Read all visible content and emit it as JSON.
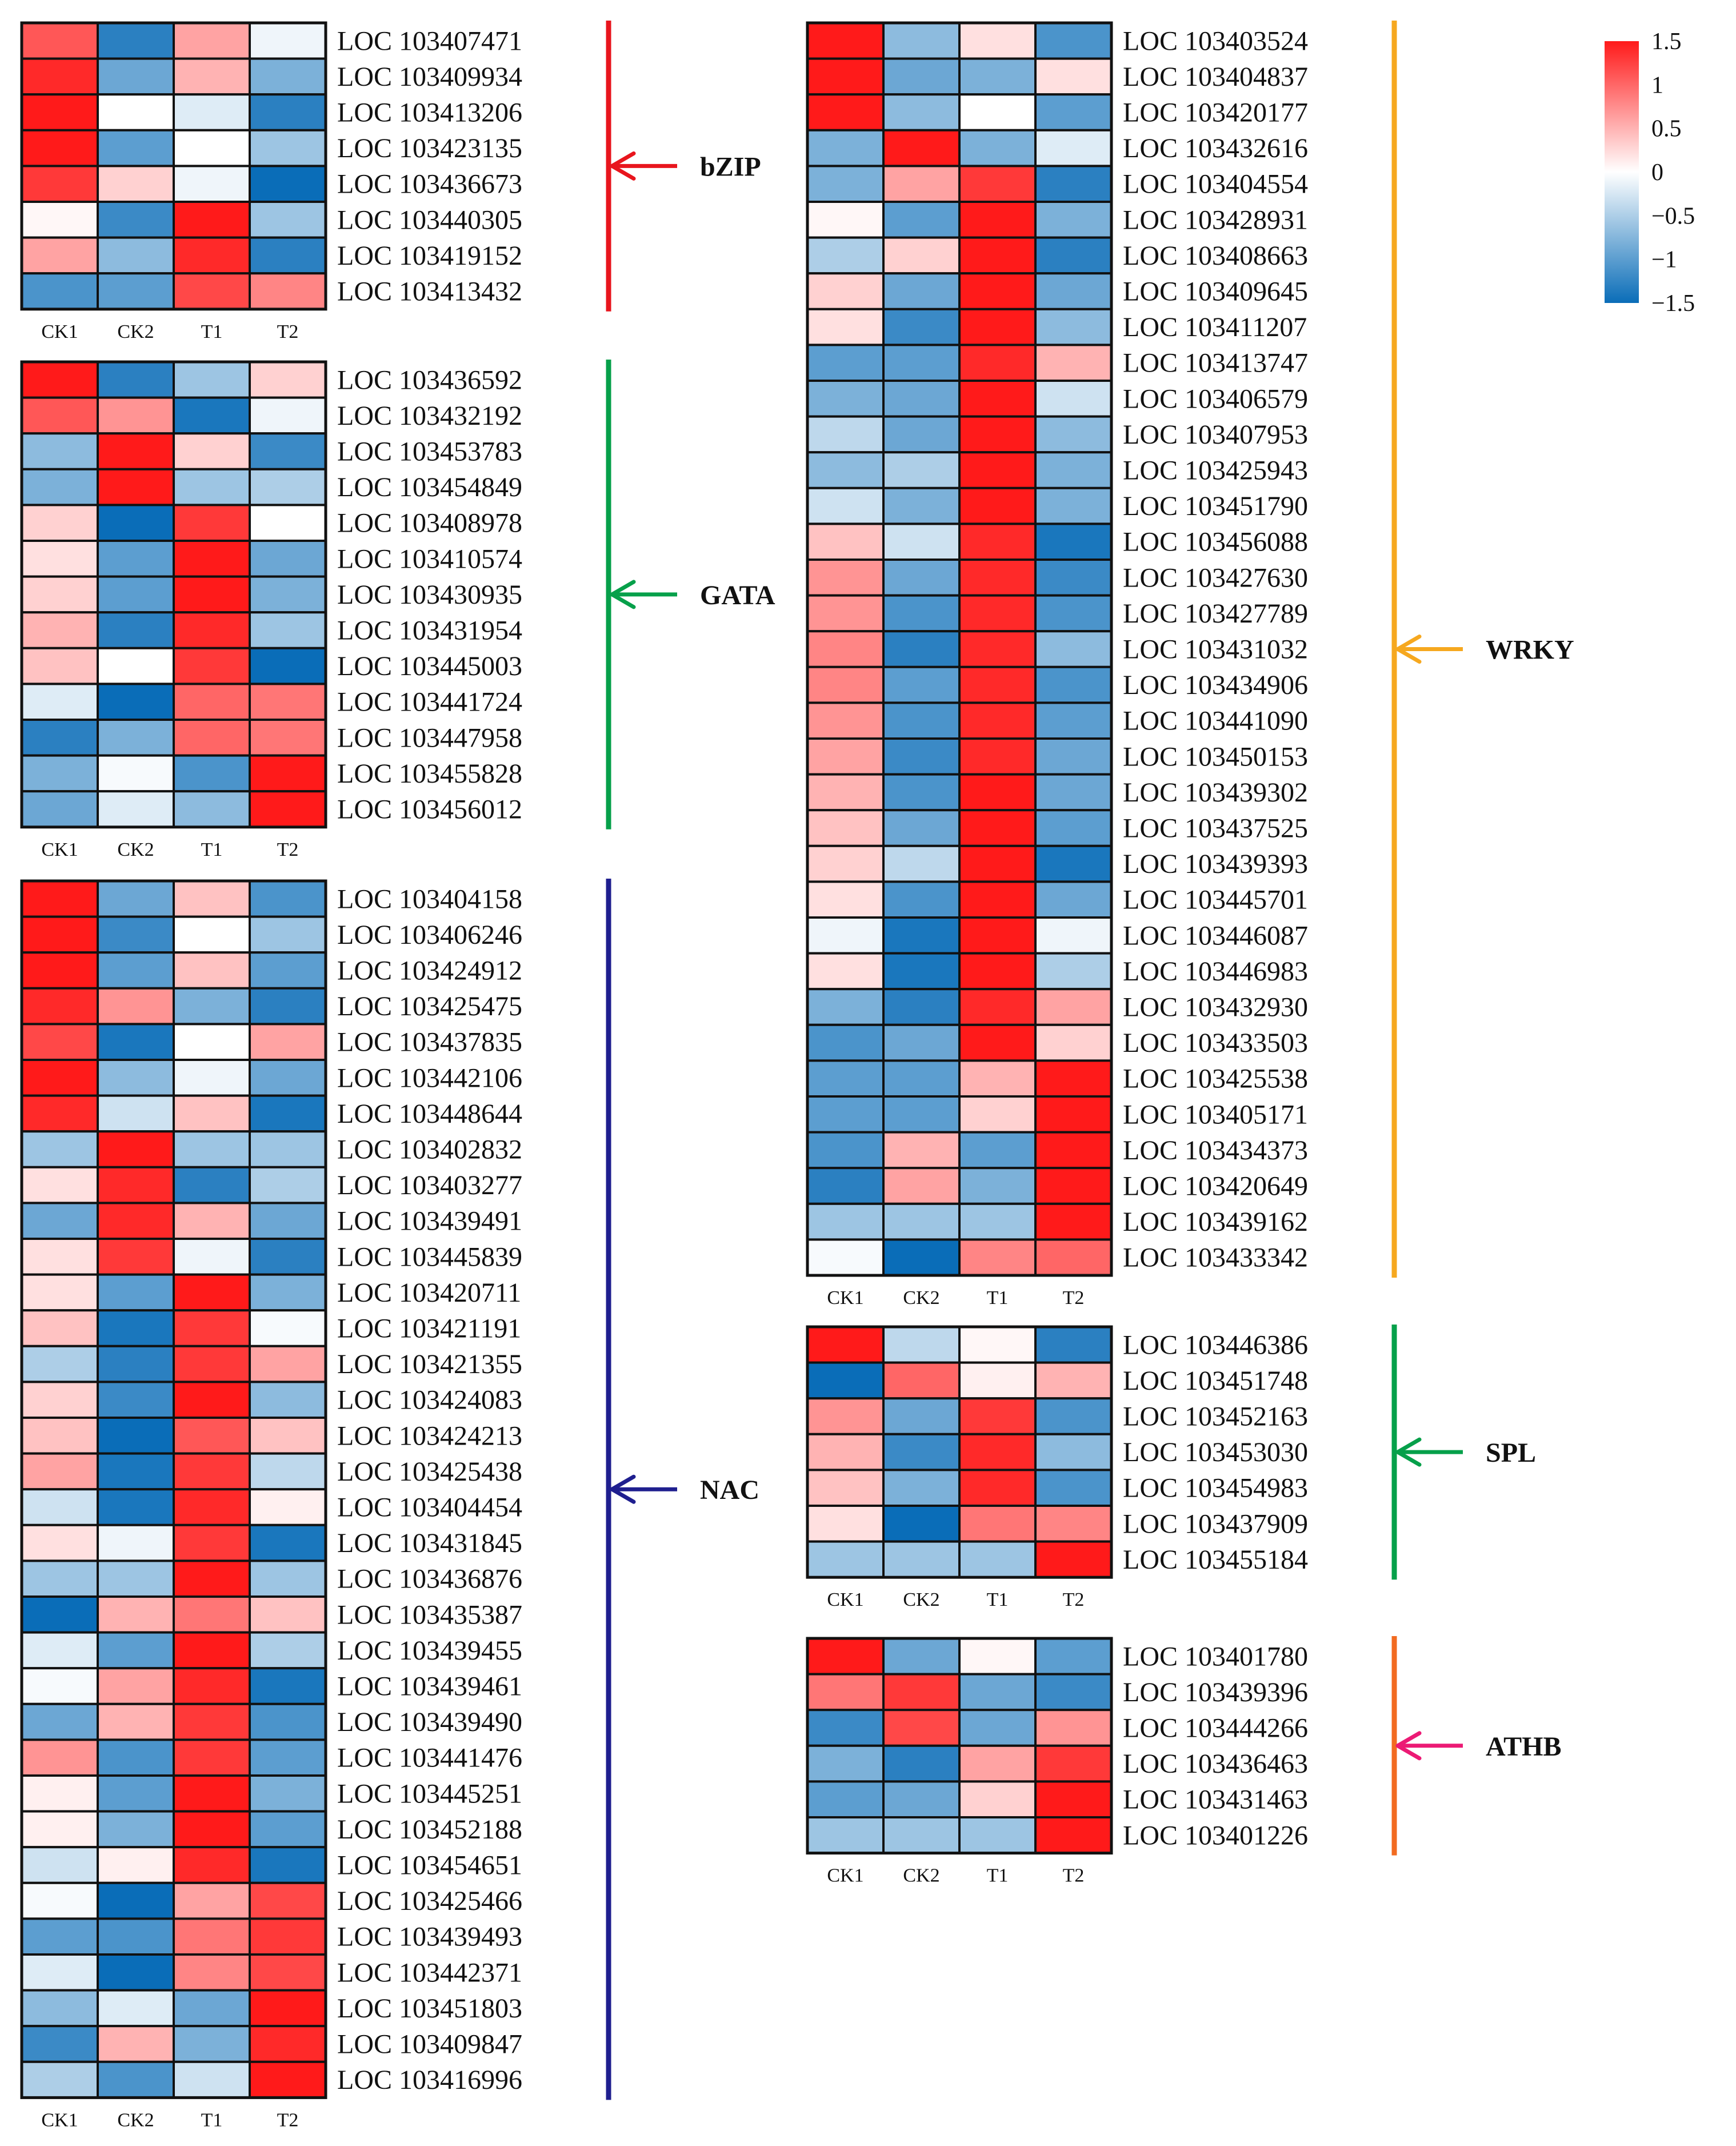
{
  "colorbar": {
    "ticks": [
      1.5,
      1,
      0.5,
      0,
      -0.5,
      -1,
      -1.5
    ],
    "tick_labels": [
      "1.5",
      "1",
      "0.5",
      "0",
      "−0.5",
      "−1",
      "−1.5"
    ],
    "min": -1.5,
    "max": 1.5,
    "high_color": "#ff1a1a",
    "mid_color": "#ffffff",
    "low_color": "#0a6db8"
  },
  "chart_data": {
    "type": "heatmap",
    "columns": [
      "CK1",
      "CK2",
      "T1",
      "T2"
    ],
    "families": [
      {
        "name": "bZIP",
        "color": "#e8151d",
        "arrow_color": "#e8151d",
        "genes": [
          {
            "id": "LOC 103407471",
            "values": [
              1.1,
              -1.3,
              0.6,
              -0.1
            ]
          },
          {
            "id": "LOC 103409934",
            "values": [
              1.4,
              -0.9,
              0.5,
              -0.8
            ]
          },
          {
            "id": "LOC 103413206",
            "values": [
              1.5,
              0.0,
              -0.2,
              -1.3
            ]
          },
          {
            "id": "LOC 103423135",
            "values": [
              1.5,
              -1.0,
              0.0,
              -0.6
            ]
          },
          {
            "id": "LOC 103436673",
            "values": [
              1.3,
              0.3,
              -0.1,
              -1.5
            ]
          },
          {
            "id": "LOC 103440305",
            "values": [
              0.05,
              -1.2,
              1.5,
              -0.6
            ]
          },
          {
            "id": "LOC 103419152",
            "values": [
              0.6,
              -0.7,
              1.4,
              -1.3
            ]
          },
          {
            "id": "LOC 103413432",
            "values": [
              -1.1,
              -1.0,
              1.2,
              0.8
            ]
          }
        ]
      },
      {
        "name": "GATA",
        "color": "#06a04a",
        "arrow_color": "#06a04a",
        "genes": [
          {
            "id": "LOC 103436592",
            "values": [
              1.5,
              -1.3,
              -0.6,
              0.3
            ]
          },
          {
            "id": "LOC 103432192",
            "values": [
              1.1,
              0.7,
              -1.4,
              -0.1
            ]
          },
          {
            "id": "LOC 103453783",
            "values": [
              -0.7,
              1.5,
              0.3,
              -1.2
            ]
          },
          {
            "id": "LOC 103454849",
            "values": [
              -0.8,
              1.5,
              -0.6,
              -0.5
            ]
          },
          {
            "id": "LOC 103408978",
            "values": [
              0.3,
              -1.5,
              1.3,
              0.0
            ]
          },
          {
            "id": "LOC 103410574",
            "values": [
              0.2,
              -1.0,
              1.5,
              -0.9
            ]
          },
          {
            "id": "LOC 103430935",
            "values": [
              0.3,
              -1.0,
              1.5,
              -0.8
            ]
          },
          {
            "id": "LOC 103431954",
            "values": [
              0.5,
              -1.3,
              1.4,
              -0.6
            ]
          },
          {
            "id": "LOC 103445003",
            "values": [
              0.4,
              0.0,
              1.3,
              -1.5
            ]
          },
          {
            "id": "LOC 103441724",
            "values": [
              -0.2,
              -1.5,
              1.0,
              0.9
            ]
          },
          {
            "id": "LOC 103447958",
            "values": [
              -1.3,
              -0.8,
              1.0,
              0.9
            ]
          },
          {
            "id": "LOC 103455828",
            "values": [
              -0.8,
              -0.05,
              -1.1,
              1.5
            ]
          },
          {
            "id": "LOC 103456012",
            "values": [
              -0.9,
              -0.2,
              -0.7,
              1.5
            ]
          }
        ]
      },
      {
        "name": "NAC",
        "color": "#1f1f8f",
        "arrow_color": "#1f1f8f",
        "genes": [
          {
            "id": "LOC 103404158",
            "values": [
              1.5,
              -0.9,
              0.4,
              -1.1
            ]
          },
          {
            "id": "LOC 103406246",
            "values": [
              1.5,
              -1.2,
              0.0,
              -0.6
            ]
          },
          {
            "id": "LOC 103424912",
            "values": [
              1.5,
              -1.0,
              0.4,
              -1.0
            ]
          },
          {
            "id": "LOC 103425475",
            "values": [
              1.4,
              0.7,
              -0.8,
              -1.3
            ]
          },
          {
            "id": "LOC 103437835",
            "values": [
              1.2,
              -1.4,
              0.0,
              0.6
            ]
          },
          {
            "id": "LOC 103442106",
            "values": [
              1.5,
              -0.7,
              -0.1,
              -0.9
            ]
          },
          {
            "id": "LOC 103448644",
            "values": [
              1.4,
              -0.3,
              0.4,
              -1.4
            ]
          },
          {
            "id": "LOC 103402832",
            "values": [
              -0.6,
              1.5,
              -0.6,
              -0.6
            ]
          },
          {
            "id": "LOC 103403277",
            "values": [
              0.2,
              1.4,
              -1.3,
              -0.5
            ]
          },
          {
            "id": "LOC 103439491",
            "values": [
              -0.9,
              1.4,
              0.5,
              -0.9
            ]
          },
          {
            "id": "LOC 103445839",
            "values": [
              0.2,
              1.3,
              -0.1,
              -1.3
            ]
          },
          {
            "id": "LOC 103420711",
            "values": [
              0.2,
              -1.0,
              1.5,
              -0.8
            ]
          },
          {
            "id": "LOC 103421191",
            "values": [
              0.4,
              -1.4,
              1.3,
              -0.05
            ]
          },
          {
            "id": "LOC 103421355",
            "values": [
              -0.5,
              -1.3,
              1.3,
              0.6
            ]
          },
          {
            "id": "LOC 103424083",
            "values": [
              0.3,
              -1.2,
              1.5,
              -0.7
            ]
          },
          {
            "id": "LOC 103424213",
            "values": [
              0.4,
              -1.5,
              1.1,
              0.4
            ]
          },
          {
            "id": "LOC 103425438",
            "values": [
              0.6,
              -1.4,
              1.3,
              -0.4
            ]
          },
          {
            "id": "LOC 103404454",
            "values": [
              -0.3,
              -1.4,
              1.4,
              0.1
            ]
          },
          {
            "id": "LOC 103431845",
            "values": [
              0.2,
              -0.1,
              1.3,
              -1.4
            ]
          },
          {
            "id": "LOC 103436876",
            "values": [
              -0.6,
              -0.6,
              1.5,
              -0.6
            ]
          },
          {
            "id": "LOC 103435387",
            "values": [
              -1.5,
              0.5,
              0.9,
              0.4
            ]
          },
          {
            "id": "LOC 103439455",
            "values": [
              -0.2,
              -1.0,
              1.5,
              -0.5
            ]
          },
          {
            "id": "LOC 103439461",
            "values": [
              -0.05,
              0.6,
              1.4,
              -1.4
            ]
          },
          {
            "id": "LOC 103439490",
            "values": [
              -0.9,
              0.5,
              1.3,
              -1.1
            ]
          },
          {
            "id": "LOC 103441476",
            "values": [
              0.7,
              -1.1,
              1.3,
              -1.0
            ]
          },
          {
            "id": "LOC 103445251",
            "values": [
              0.1,
              -1.0,
              1.5,
              -0.8
            ]
          },
          {
            "id": "LOC 103452188",
            "values": [
              0.1,
              -0.8,
              1.5,
              -1.0
            ]
          },
          {
            "id": "LOC 103454651",
            "values": [
              -0.3,
              0.1,
              1.4,
              -1.4
            ]
          },
          {
            "id": "LOC 103425466",
            "values": [
              -0.05,
              -1.5,
              0.6,
              1.2
            ]
          },
          {
            "id": "LOC 103439493",
            "values": [
              -1.0,
              -1.1,
              0.9,
              1.3
            ]
          },
          {
            "id": "LOC 103442371",
            "values": [
              -0.2,
              -1.5,
              0.8,
              1.2
            ]
          },
          {
            "id": "LOC 103451803",
            "values": [
              -0.7,
              -0.2,
              -0.9,
              1.5
            ]
          },
          {
            "id": "LOC 103409847",
            "values": [
              -1.2,
              0.5,
              -0.8,
              1.4
            ]
          },
          {
            "id": "LOC 103416996",
            "values": [
              -0.5,
              -1.1,
              -0.3,
              1.5
            ]
          }
        ]
      },
      {
        "name": "WRKY",
        "color": "#f6a81f",
        "arrow_color": "#f6a81f",
        "genes": [
          {
            "id": "LOC 103403524",
            "values": [
              1.5,
              -0.7,
              0.2,
              -1.1
            ]
          },
          {
            "id": "LOC 103404837",
            "values": [
              1.5,
              -0.9,
              -0.8,
              0.2
            ]
          },
          {
            "id": "LOC 103420177",
            "values": [
              1.5,
              -0.7,
              0.0,
              -1.0
            ]
          },
          {
            "id": "LOC 103432616",
            "values": [
              -0.8,
              1.5,
              -0.8,
              -0.2
            ]
          },
          {
            "id": "LOC 103404554",
            "values": [
              -0.8,
              0.6,
              1.3,
              -1.3
            ]
          },
          {
            "id": "LOC 103428931",
            "values": [
              0.05,
              -1.0,
              1.5,
              -0.8
            ]
          },
          {
            "id": "LOC 103408663",
            "values": [
              -0.5,
              0.3,
              1.5,
              -1.3
            ]
          },
          {
            "id": "LOC 103409645",
            "values": [
              0.3,
              -0.9,
              1.5,
              -0.9
            ]
          },
          {
            "id": "LOC 103411207",
            "values": [
              0.2,
              -1.2,
              1.5,
              -0.7
            ]
          },
          {
            "id": "LOC 103413747",
            "values": [
              -1.0,
              -1.0,
              1.4,
              0.5
            ]
          },
          {
            "id": "LOC 103406579",
            "values": [
              -0.8,
              -0.9,
              1.5,
              -0.3
            ]
          },
          {
            "id": "LOC 103407953",
            "values": [
              -0.4,
              -0.9,
              1.5,
              -0.7
            ]
          },
          {
            "id": "LOC 103425943",
            "values": [
              -0.7,
              -0.5,
              1.5,
              -0.8
            ]
          },
          {
            "id": "LOC 103451790",
            "values": [
              -0.3,
              -0.8,
              1.5,
              -0.8
            ]
          },
          {
            "id": "LOC 103456088",
            "values": [
              0.4,
              -0.3,
              1.4,
              -1.4
            ]
          },
          {
            "id": "LOC 103427630",
            "values": [
              0.7,
              -0.9,
              1.4,
              -1.2
            ]
          },
          {
            "id": "LOC 103427789",
            "values": [
              0.7,
              -1.1,
              1.4,
              -1.1
            ]
          },
          {
            "id": "LOC 103431032",
            "values": [
              0.8,
              -1.3,
              1.4,
              -0.7
            ]
          },
          {
            "id": "LOC 103434906",
            "values": [
              0.8,
              -1.0,
              1.4,
              -1.1
            ]
          },
          {
            "id": "LOC 103441090",
            "values": [
              0.7,
              -1.1,
              1.4,
              -1.0
            ]
          },
          {
            "id": "LOC 103450153",
            "values": [
              0.6,
              -1.2,
              1.4,
              -0.9
            ]
          },
          {
            "id": "LOC 103439302",
            "values": [
              0.5,
              -1.1,
              1.5,
              -0.9
            ]
          },
          {
            "id": "LOC 103437525",
            "values": [
              0.4,
              -0.9,
              1.5,
              -1.0
            ]
          },
          {
            "id": "LOC 103439393",
            "values": [
              0.3,
              -0.4,
              1.5,
              -1.4
            ]
          },
          {
            "id": "LOC 103445701",
            "values": [
              0.2,
              -1.1,
              1.5,
              -0.9
            ]
          },
          {
            "id": "LOC 103446087",
            "values": [
              -0.1,
              -1.4,
              1.5,
              -0.1
            ]
          },
          {
            "id": "LOC 103446983",
            "values": [
              0.2,
              -1.4,
              1.5,
              -0.5
            ]
          },
          {
            "id": "LOC 103432930",
            "values": [
              -0.8,
              -1.3,
              1.4,
              0.6
            ]
          },
          {
            "id": "LOC 103433503",
            "values": [
              -1.1,
              -0.9,
              1.5,
              0.3
            ]
          },
          {
            "id": "LOC 103425538",
            "values": [
              -1.0,
              -1.0,
              0.5,
              1.5
            ]
          },
          {
            "id": "LOC 103405171",
            "values": [
              -1.0,
              -1.0,
              0.3,
              1.5
            ]
          },
          {
            "id": "LOC 103434373",
            "values": [
              -1.1,
              0.5,
              -1.0,
              1.5
            ]
          },
          {
            "id": "LOC 103420649",
            "values": [
              -1.3,
              0.6,
              -0.8,
              1.5
            ]
          },
          {
            "id": "LOC 103439162",
            "values": [
              -0.6,
              -0.6,
              -0.6,
              1.5
            ]
          },
          {
            "id": "LOC 103433342",
            "values": [
              -0.05,
              -1.5,
              0.8,
              1.0
            ]
          }
        ]
      },
      {
        "name": "SPL",
        "color": "#06a04a",
        "arrow_color": "#06a04a",
        "genes": [
          {
            "id": "LOC 103446386",
            "values": [
              1.5,
              -0.4,
              0.05,
              -1.3
            ]
          },
          {
            "id": "LOC 103451748",
            "values": [
              -1.5,
              1.0,
              0.1,
              0.5
            ]
          },
          {
            "id": "LOC 103452163",
            "values": [
              0.7,
              -0.9,
              1.3,
              -1.1
            ]
          },
          {
            "id": "LOC 103453030",
            "values": [
              0.5,
              -1.2,
              1.4,
              -0.7
            ]
          },
          {
            "id": "LOC 103454983",
            "values": [
              0.4,
              -0.8,
              1.4,
              -1.1
            ]
          },
          {
            "id": "LOC 103437909",
            "values": [
              0.2,
              -1.5,
              0.9,
              0.8
            ]
          },
          {
            "id": "LOC 103455184",
            "values": [
              -0.6,
              -0.6,
              -0.6,
              1.5
            ]
          }
        ]
      },
      {
        "name": "ATHB",
        "color": "#f26b21",
        "arrow_color": "#ec1a75",
        "genes": [
          {
            "id": "LOC 103401780",
            "values": [
              1.5,
              -0.9,
              0.05,
              -1.0
            ]
          },
          {
            "id": "LOC 103439396",
            "values": [
              0.9,
              1.3,
              -0.9,
              -1.2
            ]
          },
          {
            "id": "LOC 103444266",
            "values": [
              -1.2,
              1.2,
              -0.9,
              0.7
            ]
          },
          {
            "id": "LOC 103436463",
            "values": [
              -0.8,
              -1.3,
              0.6,
              1.3
            ]
          },
          {
            "id": "LOC 103431463",
            "values": [
              -1.0,
              -0.9,
              0.3,
              1.5
            ]
          },
          {
            "id": "LOC 103401226",
            "values": [
              -0.6,
              -0.6,
              -0.6,
              1.5
            ]
          }
        ]
      }
    ]
  }
}
